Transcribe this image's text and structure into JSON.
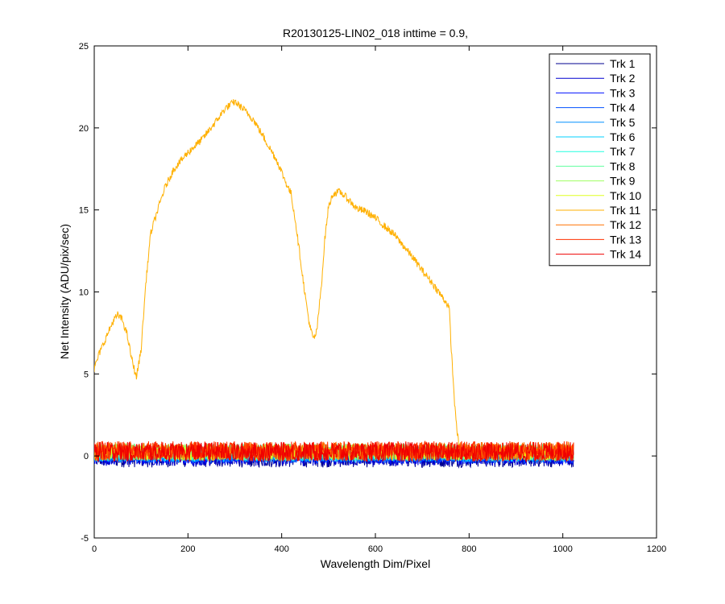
{
  "chart_data": {
    "type": "line",
    "title": "R20130125-LIN02_018 inttime = 0.9,",
    "xlabel": "Wavelength Dim/Pixel",
    "ylabel": "Net Intensity (ADU/pix/sec)",
    "xlim": [
      0,
      1200
    ],
    "ylim": [
      -5,
      25
    ],
    "xticks": [
      0,
      200,
      400,
      600,
      800,
      1000,
      1200
    ],
    "yticks": [
      -5,
      0,
      5,
      10,
      15,
      20,
      25
    ],
    "grid": false,
    "legend_position": "top-right",
    "noise_x_range": [
      0,
      1023
    ],
    "series": [
      {
        "name": "Trk 1",
        "color": "#00008f",
        "baseline": -0.15,
        "amplitude": 0.55
      },
      {
        "name": "Trk 2",
        "color": "#0000cf",
        "baseline": -0.05,
        "amplitude": 0.55
      },
      {
        "name": "Trk 3",
        "color": "#0010ff",
        "baseline": 0.0,
        "amplitude": 0.5
      },
      {
        "name": "Trk 4",
        "color": "#0050ff",
        "baseline": 0.05,
        "amplitude": 0.5
      },
      {
        "name": "Trk 5",
        "color": "#0090ff",
        "baseline": 0.1,
        "amplitude": 0.5
      },
      {
        "name": "Trk 6",
        "color": "#00d0ff",
        "baseline": 0.15,
        "amplitude": 0.5
      },
      {
        "name": "Trk 7",
        "color": "#20ffdf",
        "baseline": 0.2,
        "amplitude": 0.5
      },
      {
        "name": "Trk 8",
        "color": "#60ff9f",
        "baseline": 0.25,
        "amplitude": 0.5
      },
      {
        "name": "Trk 9",
        "color": "#9fff60",
        "baseline": 0.25,
        "amplitude": 0.5
      },
      {
        "name": "Trk 10",
        "color": "#dfff20",
        "baseline": 0.2,
        "amplitude": 0.5
      },
      {
        "name": "Trk 11",
        "color": "#ffb000",
        "points": [
          [
            0,
            5.3
          ],
          [
            10,
            6.2
          ],
          [
            25,
            7.2
          ],
          [
            40,
            8.2
          ],
          [
            50,
            8.6
          ],
          [
            60,
            8.3
          ],
          [
            70,
            7.4
          ],
          [
            80,
            5.9
          ],
          [
            90,
            4.8
          ],
          [
            100,
            6.5
          ],
          [
            110,
            10.5
          ],
          [
            120,
            13.5
          ],
          [
            130,
            14.5
          ],
          [
            150,
            16.3
          ],
          [
            170,
            17.5
          ],
          [
            200,
            18.5
          ],
          [
            230,
            19.3
          ],
          [
            260,
            20.4
          ],
          [
            280,
            21.2
          ],
          [
            300,
            21.6
          ],
          [
            320,
            21.1
          ],
          [
            340,
            20.5
          ],
          [
            360,
            19.5
          ],
          [
            390,
            18.0
          ],
          [
            410,
            16.6
          ],
          [
            420,
            16.0
          ],
          [
            430,
            14.2
          ],
          [
            440,
            12.0
          ],
          [
            450,
            9.8
          ],
          [
            460,
            7.9
          ],
          [
            468,
            7.1
          ],
          [
            475,
            7.6
          ],
          [
            485,
            10.5
          ],
          [
            492,
            13.2
          ],
          [
            500,
            15.2
          ],
          [
            510,
            16.0
          ],
          [
            525,
            16.1
          ],
          [
            540,
            15.7
          ],
          [
            560,
            15.1
          ],
          [
            580,
            14.9
          ],
          [
            600,
            14.5
          ],
          [
            620,
            14.0
          ],
          [
            640,
            13.5
          ],
          [
            660,
            12.8
          ],
          [
            680,
            12.1
          ],
          [
            700,
            11.3
          ],
          [
            720,
            10.6
          ],
          [
            740,
            9.8
          ],
          [
            755,
            9.2
          ],
          [
            758,
            8.8
          ],
          [
            762,
            6.5
          ],
          [
            770,
            2.8
          ],
          [
            778,
            0.6
          ],
          [
            785,
            0.3
          ],
          [
            800,
            0.3
          ],
          [
            850,
            0.3
          ],
          [
            900,
            0.3
          ],
          [
            950,
            0.3
          ],
          [
            1000,
            0.3
          ],
          [
            1023,
            0.3
          ]
        ]
      },
      {
        "name": "Trk 12",
        "color": "#ff7000",
        "baseline": 0.3,
        "amplitude": 0.55
      },
      {
        "name": "Trk 13",
        "color": "#ff3000",
        "baseline": 0.3,
        "amplitude": 0.6
      },
      {
        "name": "Trk 14",
        "color": "#ef0000",
        "baseline": 0.25,
        "amplitude": 0.6
      }
    ]
  }
}
